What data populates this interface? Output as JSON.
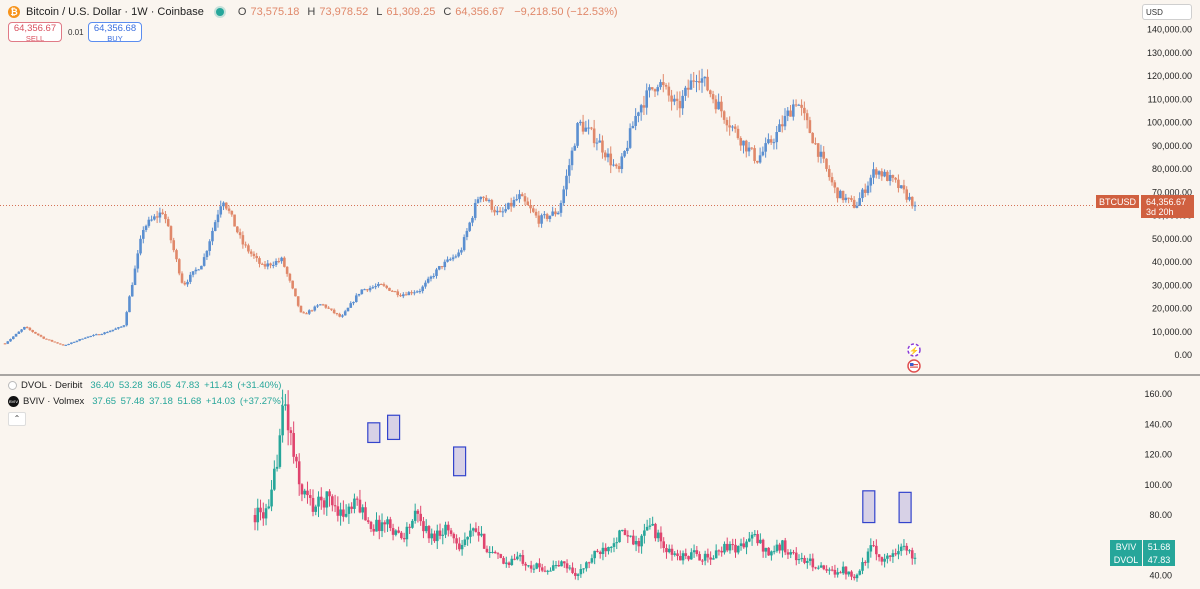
{
  "header": {
    "coin_icon": "bitcoin-icon",
    "title": "Bitcoin / U.S. Dollar · 1W · Coinbase",
    "o_label": "O",
    "o_value": "73,575.18",
    "h_label": "H",
    "h_value": "73,978.52",
    "l_label": "L",
    "l_value": "61,309.25",
    "c_label": "C",
    "c_value": "64,356.67",
    "change": "−9,218.50 (−12.53%)"
  },
  "trade": {
    "sell_price": "64,356.67",
    "sell_label": "SELL",
    "spread": "0.01",
    "buy_price": "64,356.68",
    "buy_label": "BUY"
  },
  "currency": "USD",
  "indicators": [
    {
      "name": "DVOL · Deribit",
      "values": "36.40 53.28 36.05 47.83 +11.43 (+31.40%)"
    },
    {
      "name": "BVIV · Volmex",
      "icon_text": "BVIV",
      "values": "37.65 57.48 37.18 51.68 +14.03 (+37.27%)"
    }
  ],
  "colors": {
    "up": "#5b8fd0",
    "down": "#e0886a",
    "vol_up": "#26a69a",
    "vol_down": "#e0446e",
    "highlight": "#3344cc"
  },
  "price_scale": {
    "ticks": [
      0,
      10000,
      20000,
      30000,
      40000,
      50000,
      60000,
      70000,
      80000,
      90000,
      100000,
      110000,
      120000,
      130000,
      140000
    ],
    "tick_labels": [
      "0.00",
      "10,000.00",
      "20,000.00",
      "30,000.00",
      "40,000.00",
      "50,000.00",
      "60,000.00",
      "70,000.00",
      "80,000.00",
      "90,000.00",
      "100,000.00",
      "110,000.00",
      "120,000.00",
      "130,000.00",
      "140,000.00"
    ]
  },
  "last_price_tag": {
    "symbol": "BTCUSD",
    "price": "64,356.67",
    "countdown": "3d 20h"
  },
  "vol_scale": {
    "ticks": [
      40,
      60,
      80,
      100,
      120,
      140,
      160
    ],
    "tick_labels": [
      "40.00",
      "60.00",
      "80.00",
      "100.00",
      "120.00",
      "140.00",
      "160.00"
    ]
  },
  "vol_tags": [
    {
      "name": "BVIV",
      "value": "51.68"
    },
    {
      "name": "DVOL",
      "value": "47.83"
    }
  ],
  "chart_data": [
    {
      "type": "candlestick",
      "title": "Bitcoin / U.S. Dollar · 1W · Coinbase",
      "interval": "1W",
      "ylim": [
        -3000,
        145000
      ],
      "last": 64356.67,
      "close_path": [
        5000,
        12000,
        7000,
        4000,
        7500,
        9500,
        12500,
        55000,
        62000,
        30000,
        40000,
        68000,
        48000,
        38000,
        41000,
        17000,
        22000,
        16000,
        28000,
        30000,
        26000,
        28000,
        38000,
        44000,
        70000,
        60000,
        68000,
        58000,
        62000,
        100000,
        92000,
        78000,
        106000,
        118000,
        106000,
        122000,
        108000,
        95000,
        84000,
        95000,
        110000,
        90000,
        70000,
        64000,
        80000,
        74000,
        64356.67
      ]
    },
    {
      "type": "candlestick",
      "series": [
        {
          "name": "BVIV · Volmex"
        },
        {
          "name": "DVOL · Deribit"
        }
      ],
      "ylim": [
        37,
        168
      ],
      "close_path": [
        80,
        82,
        155,
        100,
        85,
        92,
        80,
        88,
        72,
        75,
        65,
        80,
        65,
        72,
        60,
        70,
        56,
        48,
        52,
        46,
        44,
        48,
        40,
        52,
        60,
        68,
        60,
        74,
        56,
        52,
        54,
        50,
        60,
        58,
        66,
        55,
        60,
        51,
        48,
        42,
        44,
        40,
        58,
        50,
        60,
        51.68
      ],
      "highlights": [
        {
          "x": 0.18,
          "from": 128,
          "to": 141
        },
        {
          "x": 0.21,
          "from": 130,
          "to": 146
        },
        {
          "x": 0.31,
          "from": 106,
          "to": 125
        },
        {
          "x": 0.93,
          "from": 75,
          "to": 96
        },
        {
          "x": 0.985,
          "from": 75,
          "to": 95
        }
      ]
    }
  ]
}
